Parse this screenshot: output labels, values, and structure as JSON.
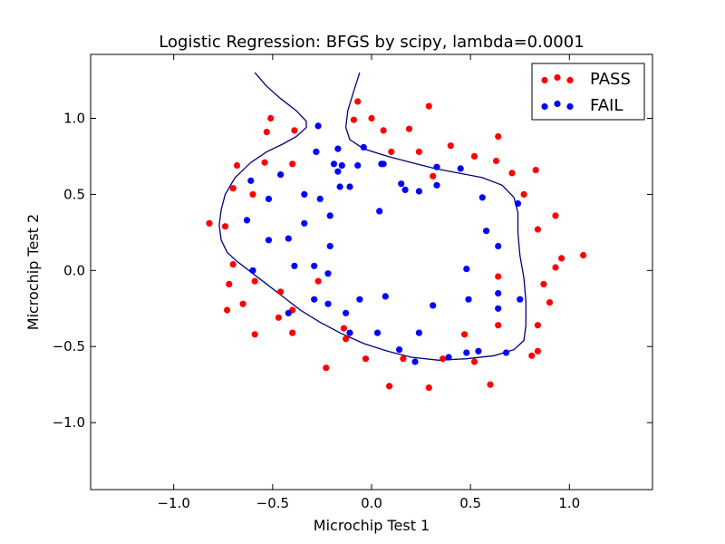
{
  "chart_data": {
    "type": "scatter",
    "title": "Logistic Regression: BFGS by scipy, lambda=0.0001",
    "xlabel": "Microchip Test 1",
    "ylabel": "Microchip Test 2",
    "xlim": [
      -1.42,
      1.42
    ],
    "ylim": [
      -1.44,
      1.42
    ],
    "xticks": [
      -1.0,
      -0.5,
      0.0,
      0.5,
      1.0
    ],
    "yticks": [
      -1.0,
      -0.5,
      0.0,
      0.5,
      1.0
    ],
    "xtick_labels": [
      "−1.0",
      "−0.5",
      "0.0",
      "0.5",
      "1.0"
    ],
    "ytick_labels": [
      "−1.0",
      "−0.5",
      "0.0",
      "0.5",
      "1.0"
    ],
    "grid": false,
    "legend_position": "top-right",
    "series": [
      {
        "name": "PASS",
        "color": "#ff0000",
        "points": [
          [
            -0.51,
            1.0
          ],
          [
            -0.53,
            0.91
          ],
          [
            -0.39,
            0.92
          ],
          [
            -0.4,
            0.7
          ],
          [
            -0.54,
            0.71
          ],
          [
            -0.68,
            0.69
          ],
          [
            -0.7,
            0.54
          ],
          [
            -0.6,
            0.5
          ],
          [
            -0.82,
            0.31
          ],
          [
            -0.74,
            0.29
          ],
          [
            -0.7,
            0.04
          ],
          [
            -0.72,
            -0.09
          ],
          [
            -0.73,
            -0.26
          ],
          [
            -0.65,
            -0.22
          ],
          [
            -0.59,
            -0.07
          ],
          [
            -0.59,
            -0.42
          ],
          [
            -0.46,
            -0.14
          ],
          [
            -0.47,
            -0.31
          ],
          [
            -0.4,
            -0.26
          ],
          [
            -0.4,
            -0.41
          ],
          [
            -0.27,
            -0.07
          ],
          [
            -0.23,
            -0.64
          ],
          [
            -0.14,
            -0.38
          ],
          [
            -0.13,
            -0.45
          ],
          [
            -0.03,
            -0.58
          ],
          [
            0.09,
            -0.76
          ],
          [
            0.16,
            -0.58
          ],
          [
            0.29,
            -0.77
          ],
          [
            0.36,
            -0.58
          ],
          [
            0.47,
            -0.42
          ],
          [
            0.52,
            -0.6
          ],
          [
            0.6,
            -0.75
          ],
          [
            0.64,
            -0.36
          ],
          [
            0.64,
            -0.04
          ],
          [
            0.81,
            -0.56
          ],
          [
            0.84,
            -0.53
          ],
          [
            0.84,
            -0.36
          ],
          [
            0.87,
            -0.09
          ],
          [
            0.9,
            -0.21
          ],
          [
            0.93,
            0.02
          ],
          [
            0.96,
            0.08
          ],
          [
            1.07,
            0.1
          ],
          [
            0.84,
            0.27
          ],
          [
            0.93,
            0.36
          ],
          [
            0.77,
            0.5
          ],
          [
            0.83,
            0.66
          ],
          [
            0.71,
            0.64
          ],
          [
            0.63,
            0.72
          ],
          [
            0.64,
            0.88
          ],
          [
            0.52,
            0.75
          ],
          [
            0.4,
            0.82
          ],
          [
            0.31,
            0.62
          ],
          [
            0.24,
            0.78
          ],
          [
            0.19,
            0.93
          ],
          [
            0.1,
            0.78
          ],
          [
            0.06,
            0.92
          ],
          [
            0.0,
            1.0
          ],
          [
            -0.09,
            0.99
          ],
          [
            -0.07,
            1.11
          ],
          [
            0.29,
            1.08
          ]
        ]
      },
      {
        "name": "FAIL",
        "color": "#0000ff",
        "points": [
          [
            -0.27,
            0.95
          ],
          [
            -0.28,
            0.78
          ],
          [
            -0.19,
            0.7
          ],
          [
            -0.15,
            0.69
          ],
          [
            -0.17,
            0.65
          ],
          [
            -0.17,
            0.8
          ],
          [
            -0.07,
            0.69
          ],
          [
            -0.04,
            0.81
          ],
          [
            0.06,
            0.7
          ],
          [
            -0.16,
            0.55
          ],
          [
            -0.11,
            0.55
          ],
          [
            -0.34,
            0.5
          ],
          [
            -0.26,
            0.47
          ],
          [
            -0.21,
            0.36
          ],
          [
            -0.34,
            0.31
          ],
          [
            -0.46,
            0.63
          ],
          [
            -0.61,
            0.59
          ],
          [
            -0.52,
            0.47
          ],
          [
            -0.63,
            0.33
          ],
          [
            -0.52,
            0.2
          ],
          [
            -0.42,
            0.21
          ],
          [
            -0.21,
            0.16
          ],
          [
            -0.6,
            0.0
          ],
          [
            -0.39,
            0.03
          ],
          [
            -0.29,
            0.03
          ],
          [
            -0.22,
            -0.02
          ],
          [
            -0.29,
            -0.19
          ],
          [
            -0.22,
            -0.22
          ],
          [
            -0.13,
            -0.28
          ],
          [
            -0.06,
            -0.19
          ],
          [
            0.07,
            -0.17
          ],
          [
            -0.42,
            -0.28
          ],
          [
            -0.11,
            -0.41
          ],
          [
            0.03,
            -0.41
          ],
          [
            0.14,
            -0.52
          ],
          [
            0.22,
            -0.6
          ],
          [
            0.24,
            -0.41
          ],
          [
            0.31,
            -0.23
          ],
          [
            0.39,
            -0.57
          ],
          [
            0.48,
            -0.54
          ],
          [
            0.54,
            -0.53
          ],
          [
            0.49,
            -0.19
          ],
          [
            0.48,
            0.01
          ],
          [
            0.64,
            -0.15
          ],
          [
            0.64,
            -0.25
          ],
          [
            0.68,
            -0.54
          ],
          [
            0.75,
            -0.19
          ],
          [
            0.64,
            0.16
          ],
          [
            0.58,
            0.26
          ],
          [
            0.74,
            0.44
          ],
          [
            0.56,
            0.48
          ],
          [
            0.45,
            0.67
          ],
          [
            0.33,
            0.68
          ],
          [
            0.33,
            0.56
          ],
          [
            0.24,
            0.52
          ],
          [
            0.17,
            0.53
          ],
          [
            0.15,
            0.57
          ],
          [
            0.04,
            0.39
          ],
          [
            0.05,
            0.7
          ]
        ]
      }
    ],
    "boundary_color": "#000080",
    "decision_boundary": [
      [
        -0.59,
        1.3
      ],
      [
        -0.53,
        1.21
      ],
      [
        -0.46,
        1.13
      ],
      [
        -0.38,
        1.05
      ],
      [
        -0.33,
        0.98
      ],
      [
        -0.33,
        0.94
      ],
      [
        -0.38,
        0.88
      ],
      [
        -0.45,
        0.83
      ],
      [
        -0.53,
        0.78
      ],
      [
        -0.61,
        0.71
      ],
      [
        -0.69,
        0.61
      ],
      [
        -0.74,
        0.5
      ],
      [
        -0.76,
        0.4
      ],
      [
        -0.77,
        0.3
      ],
      [
        -0.76,
        0.2
      ],
      [
        -0.73,
        0.12
      ],
      [
        -0.68,
        0.06
      ],
      [
        -0.62,
        0.0
      ],
      [
        -0.54,
        -0.08
      ],
      [
        -0.45,
        -0.17
      ],
      [
        -0.36,
        -0.26
      ],
      [
        -0.26,
        -0.34
      ],
      [
        -0.16,
        -0.41
      ],
      [
        -0.04,
        -0.48
      ],
      [
        0.08,
        -0.53
      ],
      [
        0.2,
        -0.57
      ],
      [
        0.34,
        -0.59
      ],
      [
        0.48,
        -0.58
      ],
      [
        0.62,
        -0.56
      ],
      [
        0.72,
        -0.52
      ],
      [
        0.77,
        -0.46
      ],
      [
        0.78,
        -0.36
      ],
      [
        0.78,
        -0.2
      ],
      [
        0.77,
        -0.05
      ],
      [
        0.75,
        0.1
      ],
      [
        0.74,
        0.25
      ],
      [
        0.74,
        0.38
      ],
      [
        0.72,
        0.48
      ],
      [
        0.66,
        0.56
      ],
      [
        0.56,
        0.61
      ],
      [
        0.44,
        0.64
      ],
      [
        0.32,
        0.67
      ],
      [
        0.2,
        0.71
      ],
      [
        0.08,
        0.75
      ],
      [
        -0.04,
        0.8
      ],
      [
        -0.11,
        0.86
      ],
      [
        -0.13,
        0.94
      ],
      [
        -0.12,
        1.05
      ],
      [
        -0.09,
        1.18
      ],
      [
        -0.06,
        1.3
      ]
    ]
  }
}
